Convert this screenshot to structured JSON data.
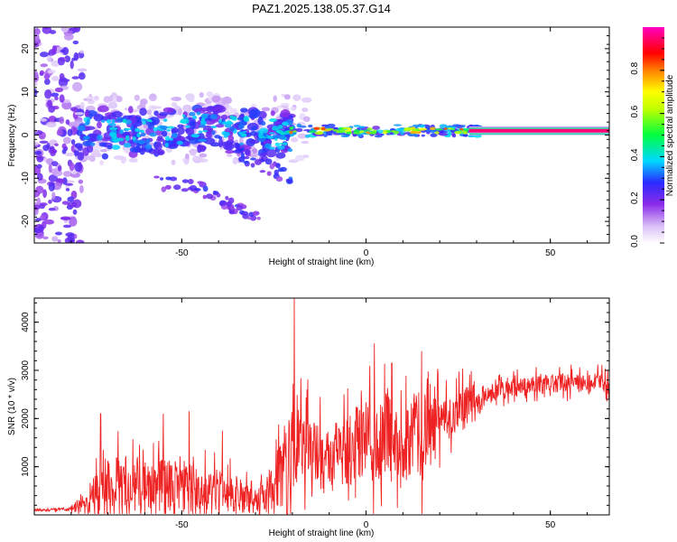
{
  "title": "PAZ1.2025.138.05.37.G14",
  "chart_data": [
    {
      "type": "heatmap",
      "xlabel": "Height of straight line (km)",
      "ylabel": "Frequency (Hz)",
      "xlim": [
        -90,
        66
      ],
      "ylim": [
        -25,
        25
      ],
      "xticks": [
        -50,
        0,
        50
      ],
      "yticks": [
        -20,
        -10,
        0,
        10,
        20
      ],
      "colorbar": {
        "label": "Normalized spectral amplitude",
        "range": [
          0,
          1
        ],
        "ticks": [
          "0.0",
          "0.2",
          "0.4",
          "0.6",
          "0.8"
        ],
        "colormap": [
          "#ffffff",
          "#c9a6f5",
          "#7a1fe8",
          "#2222ff",
          "#00e5ff",
          "#00ff00",
          "#ffff00",
          "#ff7f00",
          "#ff0000",
          "#ff00ff"
        ]
      },
      "features": [
        {
          "segment": "scattered low-amplitude noise",
          "x_range": [
            -90,
            -78
          ],
          "freq_range": [
            -25,
            25
          ],
          "amplitude": 0.2
        },
        {
          "segment": "broadened blobs",
          "x_range": [
            -78,
            -20
          ],
          "freq_center": [
            3,
            0
          ],
          "spread_hz": 6,
          "amplitude": 0.4
        },
        {
          "segment": "drifting branch",
          "x_range": [
            -60,
            -25
          ],
          "freq_path": [
            [
              -57,
              -11
            ],
            [
              -47,
              -12
            ],
            [
              -37,
              -16
            ],
            [
              -30,
              -19
            ]
          ],
          "amplitude": 0.25
        },
        {
          "segment": "narrowing line",
          "x_range": [
            -20,
            30
          ],
          "freq_center": 1,
          "spread_hz": 1.2,
          "amplitude": 0.6
        },
        {
          "segment": "clean carrier line",
          "x_range": [
            30,
            66
          ],
          "freq_center": 1,
          "spread_hz": 0.4,
          "amplitude": 0.95
        }
      ]
    },
    {
      "type": "line",
      "xlabel": "Height of straight line (km)",
      "ylabel": "SNR (10 * v/v)",
      "xlim": [
        -90,
        66
      ],
      "ylim": [
        0,
        4500
      ],
      "xticks": [
        -50,
        0,
        50
      ],
      "yticks": [
        1000,
        2000,
        3000,
        4000
      ],
      "color": "#ee2222",
      "trend_points": {
        "x": [
          -90,
          -80,
          -75,
          -70,
          -60,
          -50,
          -45,
          -40,
          -30,
          -25,
          -20,
          -15,
          -10,
          -5,
          0,
          5,
          10,
          15,
          20,
          25,
          30,
          35,
          40,
          50,
          60,
          66
        ],
        "y": [
          100,
          120,
          300,
          650,
          650,
          620,
          550,
          500,
          320,
          450,
          1500,
          1300,
          1100,
          1300,
          1700,
          1700,
          1300,
          1750,
          2000,
          2150,
          2350,
          2550,
          2650,
          2720,
          2750,
          2720
        ]
      },
      "peaks": [
        {
          "x": -72,
          "y": 2100
        },
        {
          "x": -55,
          "y": 2100
        },
        {
          "x": -48,
          "y": 2150
        },
        {
          "x": -39,
          "y": 1750
        },
        {
          "x": -19.5,
          "y": 4500
        },
        {
          "x": -16,
          "y": 2600
        },
        {
          "x": 1,
          "y": 3100
        },
        {
          "x": 7,
          "y": 3150
        },
        {
          "x": 16,
          "y": 2500
        }
      ]
    }
  ]
}
